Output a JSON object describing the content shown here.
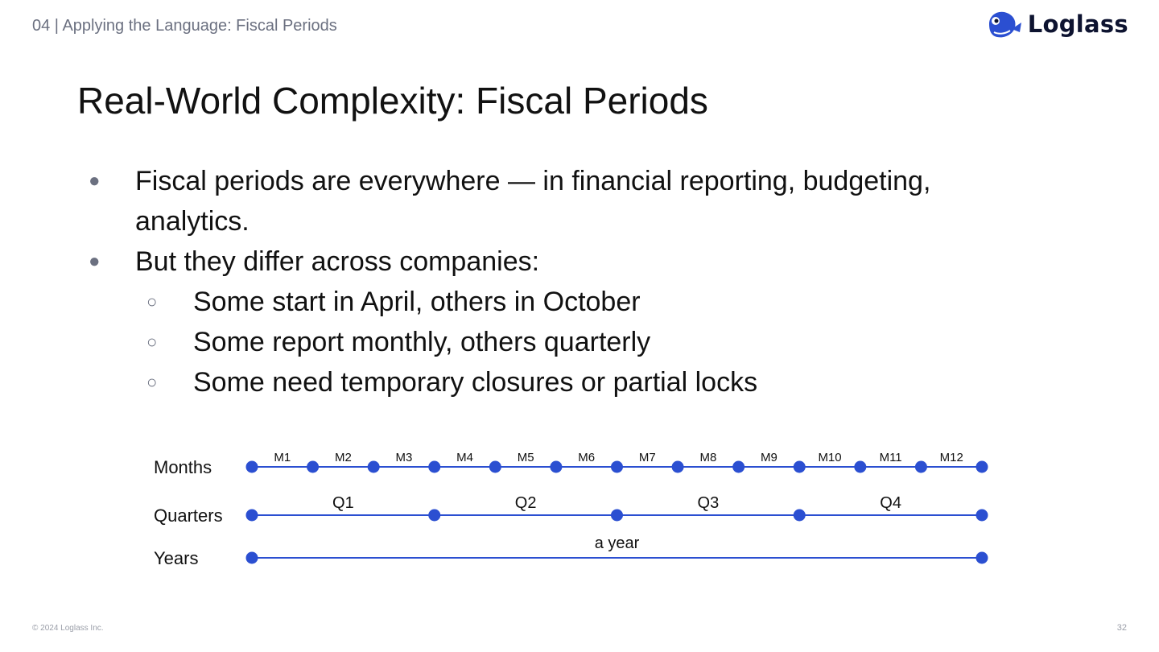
{
  "header": {
    "section_label": "04 | Applying the Language: Fiscal Periods",
    "logo_text": "Loglass"
  },
  "slide": {
    "title": "Real-World Complexity: Fiscal Periods",
    "bullets": [
      {
        "level": 1,
        "text": "Fiscal periods are everywhere — in financial reporting, budgeting, analytics."
      },
      {
        "level": 1,
        "text": "But they differ across companies:"
      },
      {
        "level": 2,
        "text": "Some start in April, others in October"
      },
      {
        "level": 2,
        "text": "Some report monthly, others quarterly"
      },
      {
        "level": 2,
        "text": "Some need temporary closures or partial locks"
      }
    ],
    "bullet_markers": {
      "level1": "●",
      "level2": "○"
    }
  },
  "timeline": {
    "color": "#2b4fd1",
    "rows": [
      {
        "label": "Months",
        "segments": [
          "M1",
          "M2",
          "M3",
          "M4",
          "M5",
          "M6",
          "M7",
          "M8",
          "M9",
          "M10",
          "M11",
          "M12"
        ]
      },
      {
        "label": "Quarters",
        "segments": [
          "Q1",
          "Q2",
          "Q3",
          "Q4"
        ]
      },
      {
        "label": "Years",
        "segments": [
          "a year"
        ]
      }
    ]
  },
  "footer": {
    "copyright": "© 2024 Loglass Inc.",
    "page_number": "32"
  }
}
